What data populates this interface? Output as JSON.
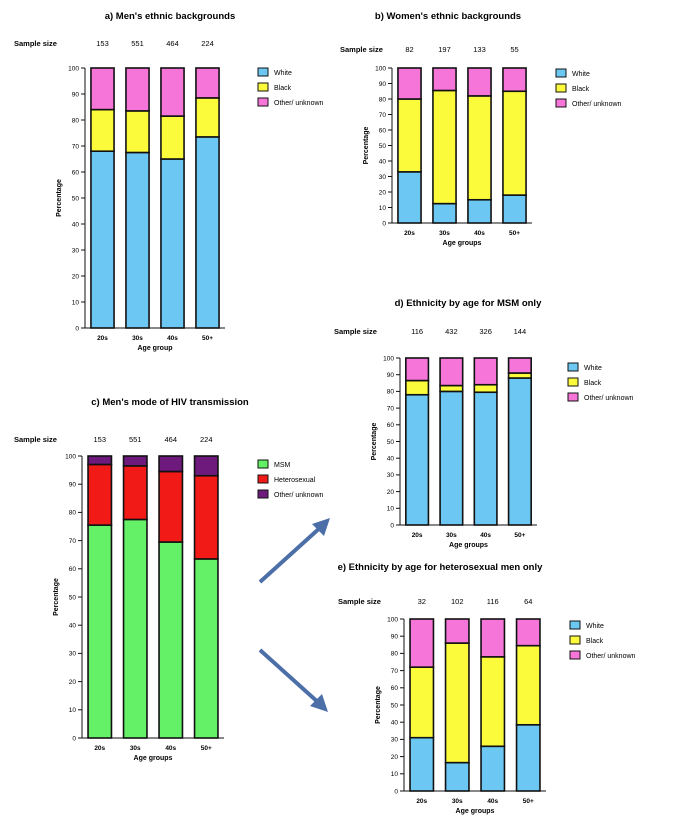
{
  "colors": {
    "white": "#6cc7f3",
    "black": "#fbfb3c",
    "other": "#f675d8",
    "msm": "#64f167",
    "heterosexual": "#f11a16",
    "other_unknown_transmission": "#6e1a7d",
    "arrow": "#4c6fa7"
  },
  "chart_data": [
    {
      "id": "a",
      "type": "bar",
      "stacked": true,
      "title": "a) Men's ethnic backgrounds",
      "sample_size_label": "Sample size",
      "sample_sizes": [
        "153",
        "551",
        "464",
        "224"
      ],
      "categories": [
        "20s",
        "30s",
        "40s",
        "50+"
      ],
      "xlabel": "Age group",
      "ylabel": "Percentage",
      "ylim": [
        0,
        100
      ],
      "yticks": [
        0,
        10,
        20,
        30,
        40,
        50,
        60,
        70,
        80,
        90,
        100
      ],
      "legend_position": "right",
      "series": [
        {
          "name": "White",
          "color_key": "white",
          "values": [
            68,
            67.5,
            65,
            73.5
          ]
        },
        {
          "name": "Black",
          "color_key": "black",
          "values": [
            16,
            16,
            16.5,
            15
          ]
        },
        {
          "name": "Other/ unknown",
          "color_key": "other",
          "values": [
            16,
            16.5,
            18.5,
            11.5
          ]
        }
      ]
    },
    {
      "id": "b",
      "type": "bar",
      "stacked": true,
      "title": "b) Women's ethnic backgrounds",
      "sample_size_label": "Sample size",
      "sample_sizes": [
        "82",
        "197",
        "133",
        "55"
      ],
      "categories": [
        "20s",
        "30s",
        "40s",
        "50+"
      ],
      "xlabel": "Age groups",
      "ylabel": "Percentage",
      "ylim": [
        0,
        100
      ],
      "yticks": [
        0,
        10,
        20,
        30,
        40,
        50,
        60,
        70,
        80,
        90,
        100
      ],
      "legend_position": "right",
      "series": [
        {
          "name": "White",
          "color_key": "white",
          "values": [
            33,
            12.5,
            15,
            18
          ]
        },
        {
          "name": "Black",
          "color_key": "black",
          "values": [
            47,
            73,
            67,
            67
          ]
        },
        {
          "name": "Other/ unknown",
          "color_key": "other",
          "values": [
            20,
            14.5,
            18,
            15
          ]
        }
      ]
    },
    {
      "id": "c",
      "type": "bar",
      "stacked": true,
      "title": "c) Men's mode of HIV transmission",
      "sample_size_label": "Sample size",
      "sample_sizes": [
        "153",
        "551",
        "464",
        "224"
      ],
      "categories": [
        "20s",
        "30s",
        "40s",
        "50+"
      ],
      "xlabel": "Age groups",
      "ylabel": "Percentage",
      "ylim": [
        0,
        100
      ],
      "yticks": [
        0,
        10,
        20,
        30,
        40,
        50,
        60,
        70,
        80,
        90,
        100
      ],
      "legend_position": "right",
      "series": [
        {
          "name": "MSM",
          "color_key": "msm",
          "values": [
            75.5,
            77.5,
            69.5,
            63.5
          ]
        },
        {
          "name": "Heterosexual",
          "color_key": "heterosexual",
          "values": [
            21.5,
            19,
            25,
            29.5
          ]
        },
        {
          "name": "Other/ unknown",
          "color_key": "other_unknown_transmission",
          "values": [
            3,
            3.5,
            5.5,
            7
          ]
        }
      ]
    },
    {
      "id": "d",
      "type": "bar",
      "stacked": true,
      "title": "d) Ethnicity by age for MSM only",
      "sample_size_label": "Sample size",
      "sample_sizes": [
        "116",
        "432",
        "326",
        "144"
      ],
      "categories": [
        "20s",
        "30s",
        "40s",
        "50+"
      ],
      "xlabel": "Age groups",
      "ylabel": "Percentage",
      "ylim": [
        0,
        100
      ],
      "yticks": [
        0,
        10,
        20,
        30,
        40,
        50,
        60,
        70,
        80,
        90,
        100
      ],
      "legend_position": "right",
      "series": [
        {
          "name": "White",
          "color_key": "white",
          "values": [
            78,
            80,
            79.5,
            88
          ]
        },
        {
          "name": "Black",
          "color_key": "black",
          "values": [
            8.5,
            3.5,
            4.5,
            3
          ]
        },
        {
          "name": "Other/ unknown",
          "color_key": "other",
          "values": [
            13.5,
            16.5,
            16,
            9
          ]
        }
      ]
    },
    {
      "id": "e",
      "type": "bar",
      "stacked": true,
      "title": "e) Ethnicity by age for heterosexual men only",
      "sample_size_label": "Sample size",
      "sample_sizes": [
        "32",
        "102",
        "116",
        "64"
      ],
      "categories": [
        "20s",
        "30s",
        "40s",
        "50+"
      ],
      "xlabel": "Age groups",
      "ylabel": "Percentage",
      "ylim": [
        0,
        100
      ],
      "yticks": [
        0,
        10,
        20,
        30,
        40,
        50,
        60,
        70,
        80,
        90,
        100
      ],
      "legend_position": "right",
      "series": [
        {
          "name": "White",
          "color_key": "white",
          "values": [
            31,
            16.5,
            26,
            38.5
          ]
        },
        {
          "name": "Black",
          "color_key": "black",
          "values": [
            41,
            69.5,
            52,
            46
          ]
        },
        {
          "name": "Other/ unknown",
          "color_key": "other",
          "values": [
            28,
            14,
            22,
            15.5
          ]
        }
      ]
    }
  ]
}
